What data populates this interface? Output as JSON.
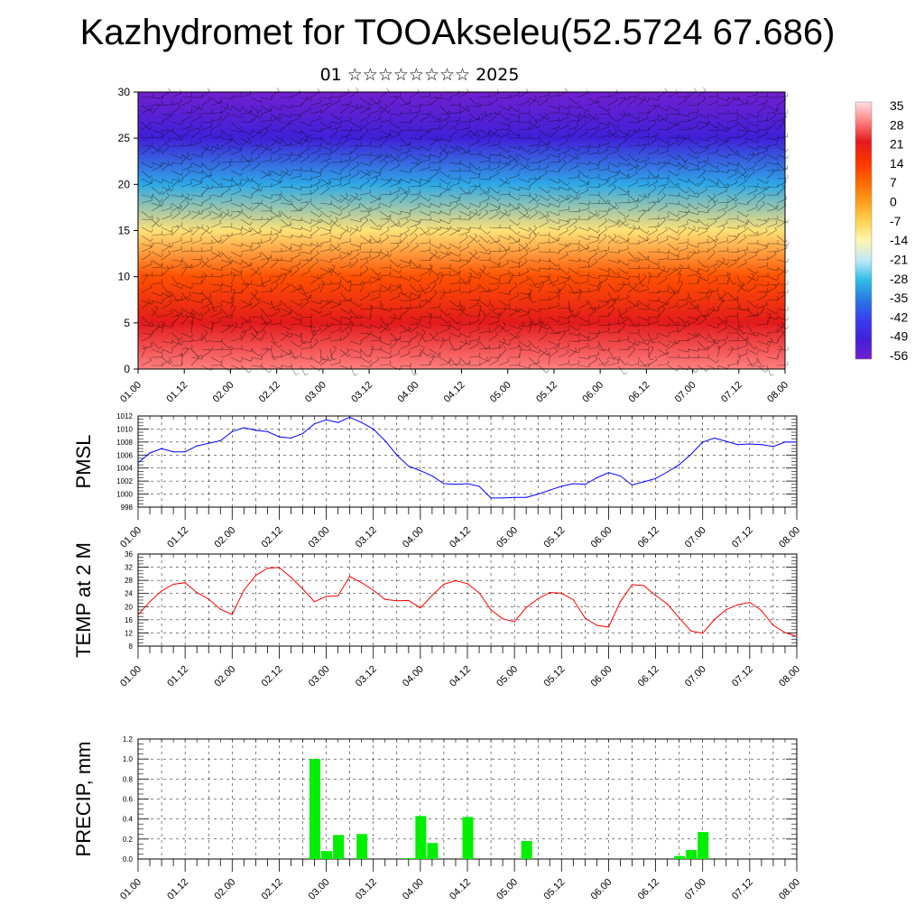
{
  "header": {
    "title": "Kazhydromet for TOOAkseleu(52.5724 67.686)",
    "subtitle": "01 ☆☆☆☆☆☆☆☆ 2025"
  },
  "chart_data": [
    {
      "type": "heatmap",
      "title": "",
      "description_note": "",
      "ylim": [
        0,
        30
      ],
      "y_ticks": [
        0,
        5,
        10,
        15,
        20,
        25,
        30
      ],
      "x_tick_labels": [
        "01.00",
        "01.12",
        "02.00",
        "02.12",
        "03.00",
        "03.12",
        "04.00",
        "04.12",
        "05.00",
        "05.12",
        "06.00",
        "06.12",
        "07.00",
        "07.12",
        "08.00"
      ],
      "colorbar": {
        "labels": [
          "35",
          "28",
          "21",
          "14",
          "7",
          "0",
          "-7",
          "-14",
          "-21",
          "-28",
          "-35",
          "-42",
          "-49",
          "-56"
        ],
        "colors": [
          "#ffe0e0",
          "#ff8080",
          "#e31a1c",
          "#ff3300",
          "#ff6600",
          "#ff9a1a",
          "#ffd24d",
          "#fff5b0",
          "#bfe9f5",
          "#30bde8",
          "#2878e6",
          "#3a3ef0",
          "#4020d8",
          "#7020d0"
        ]
      },
      "temperature_by_level": [
        {
          "level": 0,
          "value": 28
        },
        {
          "level": 5,
          "value": 21
        },
        {
          "level": 10,
          "value": 10
        },
        {
          "level": 15,
          "value": -10
        },
        {
          "level": 20,
          "value": -30
        },
        {
          "level": 25,
          "value": -49
        },
        {
          "level": 30,
          "value": -56
        }
      ]
    },
    {
      "type": "line",
      "ylabel": "PMSL",
      "ylim": [
        998,
        1012
      ],
      "y_ticks": [
        998,
        1000,
        1002,
        1004,
        1006,
        1008,
        1010,
        1012
      ],
      "x_tick_labels": [
        "01.00",
        "01.12",
        "02.00",
        "02.12",
        "03.00",
        "03.12",
        "04.00",
        "04.12",
        "05.00",
        "05.12",
        "06.00",
        "06.12",
        "07.00",
        "07.12",
        "08.00"
      ],
      "x_range": [
        0,
        168
      ],
      "color": "#0000ff",
      "x": [
        0,
        3,
        6,
        9,
        12,
        15,
        18,
        21,
        24,
        27,
        30,
        33,
        36,
        39,
        42,
        45,
        48,
        51,
        54,
        57,
        60,
        63,
        66,
        69,
        72,
        75,
        78,
        81,
        84,
        87,
        90,
        93,
        96,
        99,
        102,
        105,
        108,
        111,
        114,
        117,
        120,
        123,
        126,
        129,
        132,
        135,
        138,
        141,
        144,
        147,
        150,
        153,
        156,
        159,
        162,
        165,
        168
      ],
      "values": [
        1004.8,
        1006.3,
        1007,
        1006.5,
        1006.5,
        1007.4,
        1007.8,
        1008.2,
        1009.6,
        1010.2,
        1009.8,
        1009.6,
        1008.8,
        1008.6,
        1009.3,
        1010.8,
        1011.4,
        1011,
        1011.8,
        1011,
        1010,
        1008.2,
        1006,
        1004.3,
        1003.6,
        1002.8,
        1001.6,
        1001.5,
        1001.6,
        1001.2,
        999.4,
        999.4,
        999.5,
        999.5,
        1000,
        1000.6,
        1001.2,
        1001.6,
        1001.5,
        1002.5,
        1003.3,
        1002.8,
        1001.4,
        1001.9,
        1002.4,
        1003.4,
        1004.5,
        1006.1,
        1008,
        1008.6,
        1008.1,
        1007.6,
        1007.7,
        1007.6,
        1007.3,
        1008,
        1008
      ]
    },
    {
      "type": "line",
      "ylabel": "TEMP at 2 M",
      "ylim": [
        8,
        36
      ],
      "y_ticks": [
        8,
        12,
        16,
        20,
        24,
        28,
        32,
        36
      ],
      "x_tick_labels": [
        "01.00",
        "01.12",
        "02.00",
        "02.12",
        "03.00",
        "03.12",
        "04.00",
        "04.12",
        "05.00",
        "05.12",
        "06.00",
        "06.12",
        "07.00",
        "07.12",
        "08.00"
      ],
      "x_range": [
        0,
        168
      ],
      "color": "#ff0000",
      "x": [
        0,
        3,
        6,
        9,
        12,
        15,
        18,
        21,
        24,
        27,
        30,
        33,
        36,
        39,
        42,
        45,
        48,
        51,
        54,
        57,
        60,
        63,
        66,
        69,
        72,
        75,
        78,
        81,
        84,
        87,
        90,
        93,
        96,
        99,
        102,
        105,
        108,
        111,
        114,
        117,
        120,
        123,
        126,
        129,
        132,
        135,
        138,
        141,
        144,
        147,
        150,
        153,
        156,
        159,
        162,
        165,
        168
      ],
      "values": [
        17.5,
        21.5,
        24.8,
        26.8,
        27.3,
        24.3,
        22.3,
        19.2,
        17.6,
        25,
        29.5,
        31.7,
        31.9,
        28.9,
        25.4,
        21.5,
        23.1,
        23.3,
        29.2,
        27.3,
        25,
        22.2,
        21.8,
        21.9,
        19.6,
        23.4,
        26.8,
        27.9,
        27,
        24.2,
        19,
        16.3,
        15.4,
        19.7,
        22.4,
        24.3,
        24.1,
        22.1,
        16.5,
        14.3,
        13.8,
        21.5,
        26.7,
        26.4,
        23.4,
        20.8,
        16.6,
        12.6,
        11.9,
        16.1,
        19.1,
        20.6,
        21.3,
        18.8,
        14.3,
        12.1,
        11
      ]
    },
    {
      "type": "bar",
      "ylabel": "PRECIP, mm",
      "ylim": [
        0,
        1.2
      ],
      "y_ticks": [
        "0.0",
        "0.2",
        "0.4",
        "0.6",
        "0.8",
        "1.0",
        "1.2"
      ],
      "x_tick_labels": [
        "01.00",
        "01.12",
        "02.00",
        "02.12",
        "03.00",
        "03.12",
        "04.00",
        "04.12",
        "05.00",
        "05.12",
        "06.00",
        "06.12",
        "07.00",
        "07.12",
        "08.00"
      ],
      "x_range": [
        0,
        168
      ],
      "color": "#00ee00",
      "bar_width_hours": 3,
      "x": [
        45,
        48,
        51,
        57,
        69,
        72,
        75,
        84,
        99,
        138,
        141,
        144
      ],
      "values": [
        1.0,
        0.08,
        0.24,
        0.25,
        0.01,
        0.43,
        0.16,
        0.42,
        0.18,
        0.03,
        0.09,
        0.27
      ]
    }
  ]
}
